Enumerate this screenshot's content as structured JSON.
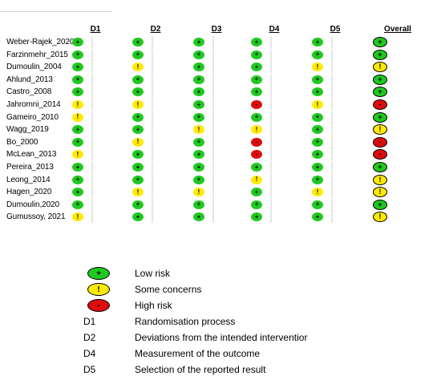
{
  "domains": [
    "D1",
    "D2",
    "D3",
    "D4",
    "D5",
    "Overall"
  ],
  "judgement_symbols": {
    "low": "+",
    "some": "!",
    "high": "-"
  },
  "judgement_colors": {
    "low": "#1fc91f",
    "some": "#ffea00",
    "high": "#dd0d0d"
  },
  "studies": [
    {
      "name": "Weber-Rajek_2020",
      "ratings": [
        "low",
        "low",
        "low",
        "low",
        "low",
        "low"
      ]
    },
    {
      "name": "Farzinmehr_2015",
      "ratings": [
        "low",
        "low",
        "low",
        "low",
        "low",
        "low"
      ]
    },
    {
      "name": "Dumoulin_2004",
      "ratings": [
        "low",
        "some",
        "low",
        "low",
        "some",
        "some"
      ]
    },
    {
      "name": "Ahlund_2013",
      "ratings": [
        "low",
        "low",
        "low",
        "low",
        "low",
        "low"
      ]
    },
    {
      "name": "Castro_2008",
      "ratings": [
        "low",
        "low",
        "low",
        "low",
        "low",
        "low"
      ]
    },
    {
      "name": "Jahromni_2014",
      "ratings": [
        "some",
        "some",
        "low",
        "high",
        "some",
        "high"
      ]
    },
    {
      "name": "Gameiro_2010",
      "ratings": [
        "some",
        "low",
        "low",
        "low",
        "low",
        "low"
      ]
    },
    {
      "name": "Wagg_2019",
      "ratings": [
        "low",
        "low",
        "some",
        "some",
        "low",
        "some"
      ]
    },
    {
      "name": "Bo_2000",
      "ratings": [
        "low",
        "some",
        "low",
        "high",
        "low",
        "high"
      ]
    },
    {
      "name": "McLean_2013",
      "ratings": [
        "some",
        "low",
        "low",
        "high",
        "low",
        "high"
      ]
    },
    {
      "name": "Pereira_2013",
      "ratings": [
        "low",
        "low",
        "low",
        "low",
        "low",
        "low"
      ]
    },
    {
      "name": "Leong_2014",
      "ratings": [
        "low",
        "low",
        "low",
        "some",
        "low",
        "some"
      ]
    },
    {
      "name": "Hagen_2020",
      "ratings": [
        "low",
        "some",
        "some",
        "low",
        "some",
        "some"
      ]
    },
    {
      "name": "Dumoulin,2020",
      "ratings": [
        "low",
        "low",
        "low",
        "low",
        "low",
        "low"
      ]
    },
    {
      "name": "Gumussoy, 2021",
      "ratings": [
        "some",
        "low",
        "low",
        "low",
        "low",
        "some"
      ]
    }
  ],
  "legend": {
    "low_label": "Low risk",
    "some_label": "Some concerns",
    "high_label": "High risk",
    "domain_definitions": [
      {
        "code": "D1",
        "text": "Randomisation process"
      },
      {
        "code": "D2",
        "text": "Deviations from the intended interventior"
      },
      {
        "code": "D4",
        "text": "Measurement of the outcome"
      },
      {
        "code": "D5",
        "text": "Selection of the reported result"
      }
    ]
  }
}
